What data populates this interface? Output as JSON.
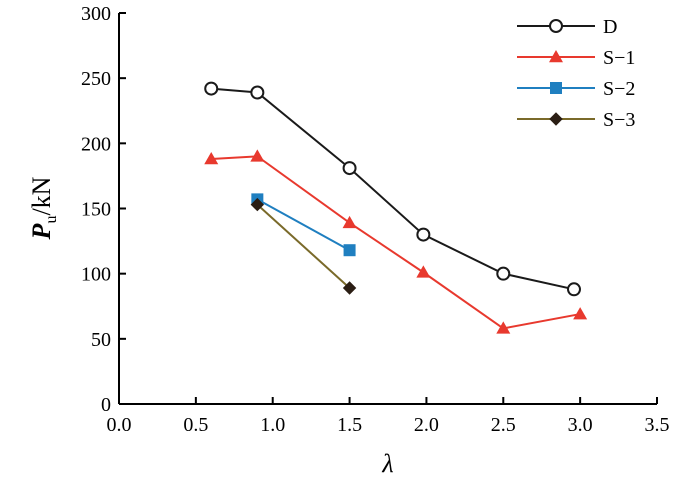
{
  "chart_data": {
    "type": "line",
    "xlabel": "λ",
    "ylabel": "P",
    "ylabel_sub": "u",
    "ylabel_unit": "/kN",
    "xlim": [
      0.0,
      3.5
    ],
    "ylim": [
      0,
      300
    ],
    "xticks": [
      0.0,
      0.5,
      1.0,
      1.5,
      2.0,
      2.5,
      3.0,
      3.5
    ],
    "xtick_labels": [
      "0.0",
      "0.5",
      "1.0",
      "1.5",
      "2.0",
      "2.5",
      "3.0",
      "3.5"
    ],
    "yticks": [
      0,
      50,
      100,
      150,
      200,
      250,
      300
    ],
    "ytick_labels": [
      "0",
      "50",
      "100",
      "150",
      "200",
      "250",
      "300"
    ],
    "grid": false,
    "legend_position": "top-right",
    "series": [
      {
        "name": "D",
        "color": "#1a1a1a",
        "marker": "circle-open",
        "x": [
          0.6,
          0.9,
          1.5,
          1.98,
          2.5,
          2.96
        ],
        "y": [
          242,
          239,
          181,
          130,
          100,
          88
        ]
      },
      {
        "name": "S−1",
        "color": "#e8392e",
        "marker": "triangle",
        "x": [
          0.6,
          0.9,
          1.5,
          1.98,
          2.5,
          3.0
        ],
        "y": [
          188,
          190,
          139,
          101,
          58,
          69
        ]
      },
      {
        "name": "S−2",
        "color": "#1f7fc0",
        "marker": "square",
        "x": [
          0.9,
          1.5
        ],
        "y": [
          157,
          118
        ]
      },
      {
        "name": "S−3",
        "color": "#7a6a2a",
        "marker": "diamond",
        "x": [
          0.9,
          1.5
        ],
        "y": [
          153,
          89
        ]
      }
    ]
  }
}
